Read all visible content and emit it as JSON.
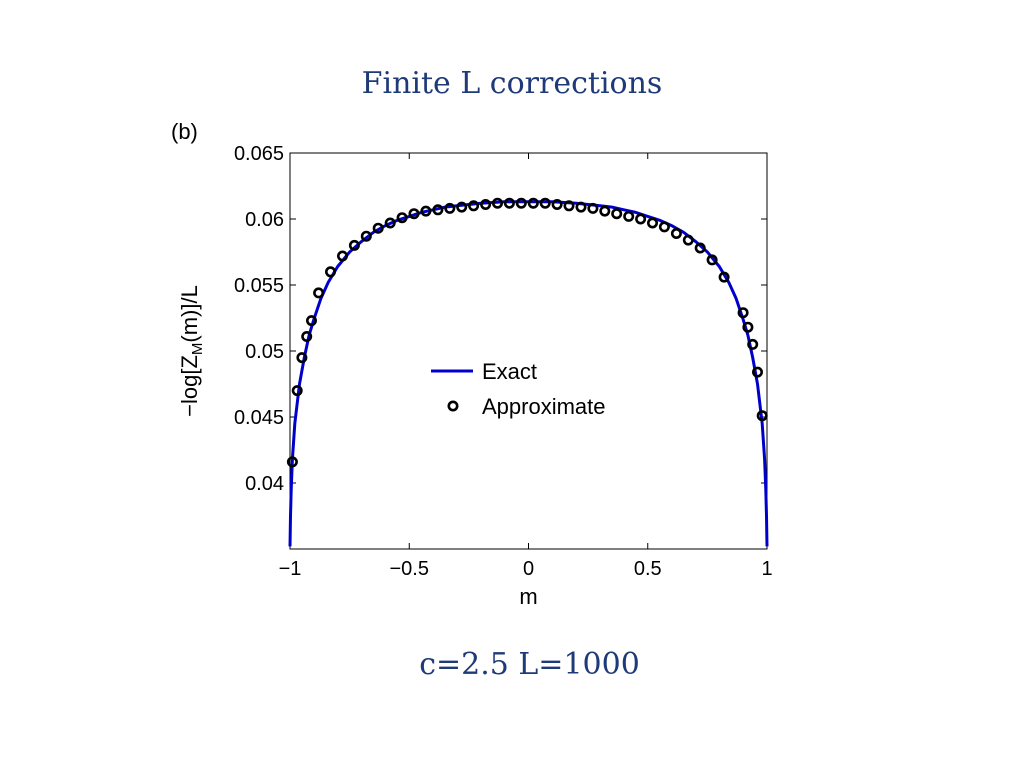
{
  "slide": {
    "title": "Finite L corrections",
    "parameters": "c=2.5  L=1000"
  },
  "chart_data": {
    "type": "line",
    "panel_label": "(b)",
    "xlabel": "m",
    "ylabel_parts": [
      "−log[Z",
      "M",
      "(m)]/L"
    ],
    "xlim": [
      -1,
      1
    ],
    "ylim": [
      0.035,
      0.065
    ],
    "xticks": [
      -1,
      -0.5,
      0,
      0.5,
      1
    ],
    "xtick_labels": [
      "−1",
      "−0.5",
      "0",
      "0.5",
      "1"
    ],
    "yticks": [
      0.04,
      0.045,
      0.05,
      0.055,
      0.06,
      0.065
    ],
    "ytick_labels": [
      "0.04",
      "0.045",
      "0.05",
      "0.055",
      "0.06",
      "0.065"
    ],
    "grid": false,
    "legend_position": "center",
    "series": [
      {
        "name": "Exact",
        "style": "line",
        "color": "#0000cc",
        "x": [
          -1.0,
          -0.998,
          -0.995,
          -0.99,
          -0.98,
          -0.96,
          -0.94,
          -0.92,
          -0.9,
          -0.87,
          -0.84,
          -0.8,
          -0.75,
          -0.7,
          -0.65,
          -0.6,
          -0.55,
          -0.5,
          -0.45,
          -0.4,
          -0.35,
          -0.3,
          -0.25,
          -0.2,
          -0.15,
          -0.1,
          -0.05,
          0.0,
          0.05,
          0.1,
          0.15,
          0.2,
          0.25,
          0.3,
          0.35,
          0.4,
          0.45,
          0.5,
          0.55,
          0.6,
          0.65,
          0.7,
          0.75,
          0.8,
          0.84,
          0.87,
          0.9,
          0.92,
          0.94,
          0.96,
          0.98,
          0.99,
          0.995,
          0.998,
          1.0
        ],
        "y": [
          0.0352,
          0.0375,
          0.0395,
          0.0418,
          0.0445,
          0.0475,
          0.0495,
          0.0512,
          0.0524,
          0.054,
          0.0552,
          0.0564,
          0.0575,
          0.0583,
          0.059,
          0.0595,
          0.0599,
          0.0602,
          0.0605,
          0.0607,
          0.0609,
          0.061,
          0.0611,
          0.0612,
          0.06125,
          0.0613,
          0.0613,
          0.0613,
          0.0613,
          0.0613,
          0.06125,
          0.0612,
          0.0611,
          0.061,
          0.0609,
          0.0607,
          0.0605,
          0.0602,
          0.0599,
          0.0595,
          0.059,
          0.0583,
          0.0575,
          0.0564,
          0.0552,
          0.054,
          0.0524,
          0.0512,
          0.0495,
          0.0475,
          0.0445,
          0.0418,
          0.0395,
          0.0375,
          0.0352
        ]
      },
      {
        "name": "Approximate",
        "style": "markers",
        "color": "#000000",
        "x": [
          -0.99,
          -0.97,
          -0.95,
          -0.93,
          -0.91,
          -0.88,
          -0.83,
          -0.78,
          -0.73,
          -0.68,
          -0.63,
          -0.58,
          -0.53,
          -0.48,
          -0.43,
          -0.38,
          -0.33,
          -0.28,
          -0.23,
          -0.18,
          -0.13,
          -0.08,
          -0.03,
          0.02,
          0.07,
          0.12,
          0.17,
          0.22,
          0.27,
          0.32,
          0.37,
          0.42,
          0.47,
          0.52,
          0.57,
          0.62,
          0.67,
          0.72,
          0.77,
          0.82,
          0.9,
          0.92,
          0.94,
          0.96,
          0.98
        ],
        "y": [
          0.0416,
          0.047,
          0.0495,
          0.0511,
          0.0523,
          0.0544,
          0.056,
          0.0572,
          0.058,
          0.0587,
          0.0593,
          0.0597,
          0.0601,
          0.0604,
          0.0606,
          0.0607,
          0.0608,
          0.0609,
          0.061,
          0.0611,
          0.0612,
          0.0612,
          0.0612,
          0.0612,
          0.0612,
          0.0611,
          0.061,
          0.0609,
          0.0608,
          0.0606,
          0.0604,
          0.0602,
          0.06,
          0.0597,
          0.0594,
          0.0589,
          0.0584,
          0.0578,
          0.0569,
          0.0556,
          0.0529,
          0.0518,
          0.0505,
          0.0484,
          0.0451
        ]
      }
    ]
  }
}
